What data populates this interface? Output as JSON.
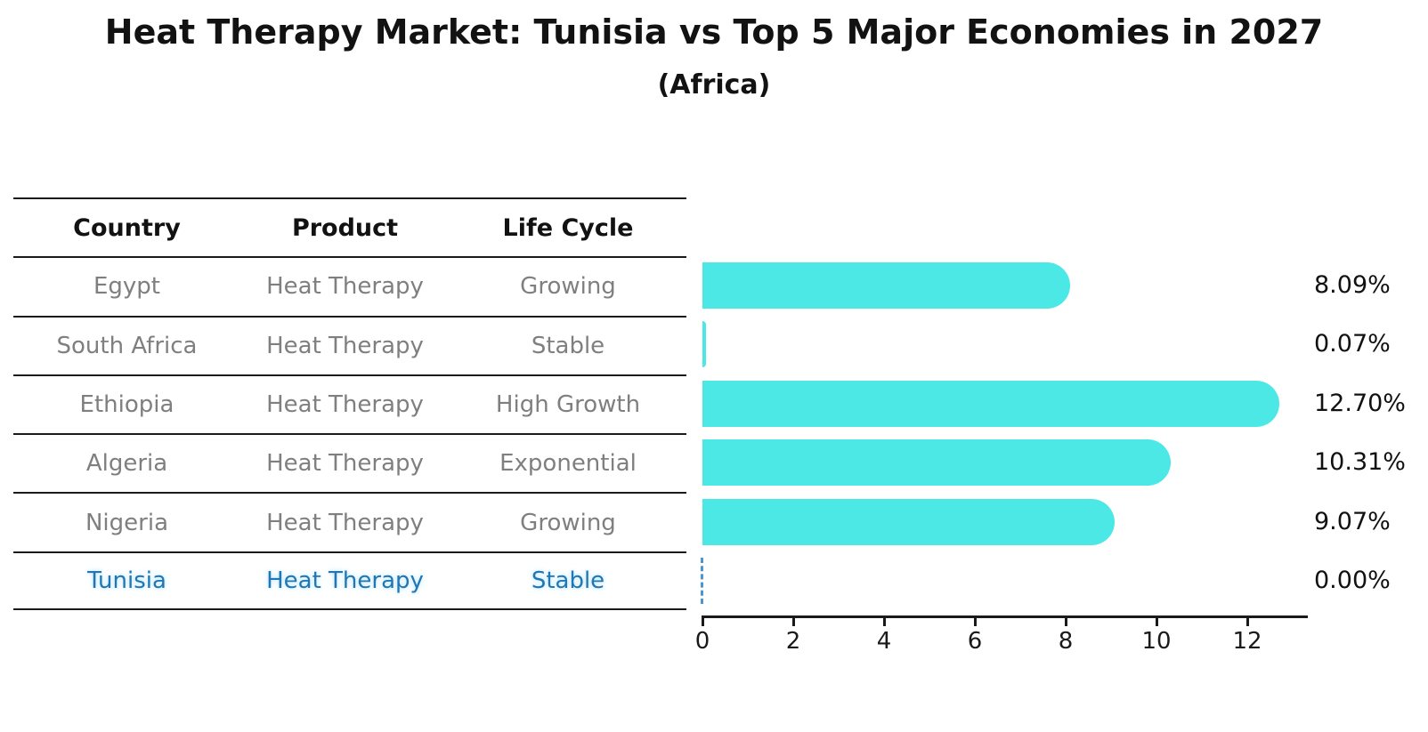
{
  "title": "Heat Therapy Market: Tunisia vs Top 5 Major Economies in 2027",
  "subtitle": "(Africa)",
  "table": {
    "headers": [
      "Country",
      "Product",
      "Life Cycle"
    ],
    "rows": [
      {
        "country": "Egypt",
        "product": "Heat Therapy",
        "life_cycle": "Growing",
        "highlight": false
      },
      {
        "country": "South Africa",
        "product": "Heat Therapy",
        "life_cycle": "Stable",
        "highlight": false
      },
      {
        "country": "Ethiopia",
        "product": "Heat Therapy",
        "life_cycle": "High Growth",
        "highlight": false
      },
      {
        "country": "Algeria",
        "product": "Heat Therapy",
        "life_cycle": "Exponential",
        "highlight": false
      },
      {
        "country": "Nigeria",
        "product": "Heat Therapy",
        "life_cycle": "Growing",
        "highlight": false
      },
      {
        "country": "Tunisia",
        "product": "Heat Therapy",
        "life_cycle": "Stable",
        "highlight": true
      }
    ]
  },
  "chart_data": {
    "type": "bar",
    "orientation": "horizontal",
    "title": "Heat Therapy Market: Tunisia vs Top 5 Major Economies in 2027",
    "subtitle": "(Africa)",
    "categories": [
      "Egypt",
      "South Africa",
      "Ethiopia",
      "Algeria",
      "Nigeria",
      "Tunisia"
    ],
    "values": [
      8.09,
      0.07,
      12.7,
      10.31,
      9.07,
      0.0
    ],
    "value_labels": [
      "8.09%",
      "0.07%",
      "12.70%",
      "10.31%",
      "9.07%",
      "0.00%"
    ],
    "xticks": [
      "0",
      "2",
      "4",
      "6",
      "8",
      "10",
      "12"
    ],
    "xlim": [
      0,
      13.3
    ],
    "xlabel": "",
    "ylabel": "",
    "grid": false,
    "legend": false,
    "bar_color": "#4BE8E6",
    "highlight_color": "#1F77B4",
    "zero_marker_style": "dashed"
  }
}
